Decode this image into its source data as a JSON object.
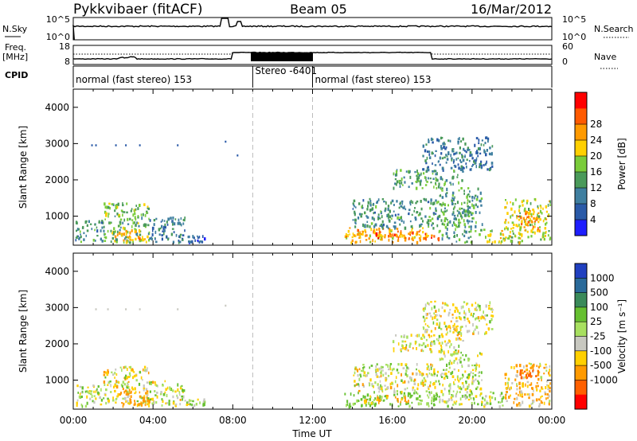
{
  "header": {
    "station": "Pykkvibaer (fitACF)",
    "beam": "Beam 05",
    "date": "16/Mar/2012"
  },
  "panel_labels": {
    "nsky": "N.Sky",
    "nsky_top": "10^5",
    "nsky_bottom": "10^0",
    "nsearch": "N.Search",
    "nsearch_top": "10^5",
    "nsearch_bottom": "10^0",
    "freq_line1": "Freq.",
    "freq_line2": "[MHz]",
    "freq_top": "18",
    "freq_bottom": "8",
    "nave": "Nave",
    "nave_top": "60",
    "nave_bottom": "0",
    "cpid": "CPID"
  },
  "cpid_segments": [
    {
      "start_h": 0,
      "end_h": 9,
      "label": "normal (fast stereo) 153"
    },
    {
      "start_h": 9,
      "end_h": 12,
      "label": "Stereo -6401"
    },
    {
      "start_h": 12,
      "end_h": 24,
      "label": "normal (fast stereo) 153"
    }
  ],
  "power_colorbar": {
    "title": "Power [dB]",
    "colors": [
      "#1e1eff",
      "#2a5aa8",
      "#3f7fa0",
      "#4a9a5a",
      "#7acc3a",
      "#ffd000",
      "#ff9a00",
      "#ff5a00",
      "#ff0000"
    ],
    "ticks": [
      "4",
      "8",
      "12",
      "16",
      "20",
      "24",
      "28"
    ]
  },
  "velocity_colorbar": {
    "title": "Velocity [m s⁻¹]",
    "colors": [
      "#2040c0",
      "#2a6a9a",
      "#3a8a5a",
      "#66c030",
      "#a8e060",
      "#c8c8c0",
      "#ffd000",
      "#ff9a00",
      "#ff6000",
      "#ff0000"
    ],
    "ticks": [
      "1000",
      "500",
      "100",
      "25",
      "-25",
      "-100",
      "-500",
      "-1000"
    ]
  },
  "chart_data": [
    {
      "type": "heatmap",
      "quantity": "Power",
      "ylabel": "Slant Range [km]",
      "ylim": [
        200,
        4500
      ],
      "xlim_hours": [
        0,
        24
      ],
      "yticks": [
        1000,
        2000,
        3000,
        4000
      ],
      "patches": [
        {
          "t0": 0.1,
          "t1": 1.5,
          "r0": 300,
          "r1": 900,
          "value": 12
        },
        {
          "t0": 1.5,
          "t1": 3.8,
          "r0": 300,
          "r1": 1400,
          "value": 16
        },
        {
          "t0": 2.0,
          "t1": 3.8,
          "r0": 350,
          "r1": 650,
          "value": 24
        },
        {
          "t0": 3.8,
          "t1": 5.6,
          "r0": 300,
          "r1": 1000,
          "value": 10
        },
        {
          "t0": 5.6,
          "t1": 6.6,
          "r0": 300,
          "r1": 500,
          "value": 6
        },
        {
          "t0": 13.5,
          "t1": 17.8,
          "r0": 300,
          "r1": 700,
          "value": 24
        },
        {
          "t0": 14.2,
          "t1": 16.5,
          "r0": 420,
          "r1": 620,
          "value": 28
        },
        {
          "t0": 16.5,
          "t1": 18.3,
          "r0": 350,
          "r1": 600,
          "value": 28
        },
        {
          "t0": 14.0,
          "t1": 18.3,
          "r0": 700,
          "r1": 1500,
          "value": 12
        },
        {
          "t0": 16.0,
          "t1": 19.5,
          "r0": 1800,
          "r1": 2300,
          "value": 14
        },
        {
          "t0": 17.5,
          "t1": 21.0,
          "r0": 2300,
          "r1": 3200,
          "value": 10
        },
        {
          "t0": 18.3,
          "t1": 20.5,
          "r0": 300,
          "r1": 1800,
          "value": 14
        },
        {
          "t0": 20.5,
          "t1": 21.6,
          "r0": 300,
          "r1": 700,
          "value": 20
        },
        {
          "t0": 21.6,
          "t1": 23.9,
          "r0": 300,
          "r1": 1500,
          "value": 20
        },
        {
          "t0": 22.2,
          "t1": 23.4,
          "r0": 700,
          "r1": 1200,
          "value": 26
        }
      ],
      "scatter_points": [
        {
          "t": 0.9,
          "r": 2980
        },
        {
          "t": 1.1,
          "r": 2980
        },
        {
          "t": 2.1,
          "r": 2980
        },
        {
          "t": 2.6,
          "r": 2980
        },
        {
          "t": 3.3,
          "r": 2980
        },
        {
          "t": 5.2,
          "r": 2980
        },
        {
          "t": 7.6,
          "r": 3080
        },
        {
          "t": 8.2,
          "r": 2700
        }
      ]
    },
    {
      "type": "heatmap",
      "quantity": "Velocity",
      "ylabel": "Slant Range [km]",
      "ylim": [
        200,
        4500
      ],
      "xlim_hours": [
        0,
        24
      ],
      "yticks": [
        1000,
        2000,
        3000,
        4000
      ],
      "xticks": [
        "00:00",
        "04:00",
        "08:00",
        "12:00",
        "16:00",
        "20:00",
        "00:00"
      ],
      "xlabel": "Time UT",
      "patches": [
        {
          "t0": 0.1,
          "t1": 1.5,
          "r0": 300,
          "r1": 900,
          "value": 50
        },
        {
          "t0": 1.5,
          "t1": 3.8,
          "r0": 300,
          "r1": 1400,
          "value": 0
        },
        {
          "t0": 2.4,
          "t1": 3.8,
          "r0": 350,
          "r1": 800,
          "value": -300
        },
        {
          "t0": 3.8,
          "t1": 5.6,
          "r0": 300,
          "r1": 1000,
          "value": 20
        },
        {
          "t0": 5.6,
          "t1": 6.6,
          "r0": 300,
          "r1": 500,
          "value": 60
        },
        {
          "t0": 13.5,
          "t1": 18.3,
          "r0": 300,
          "r1": 700,
          "value": 150
        },
        {
          "t0": 14.5,
          "t1": 16.8,
          "r0": 400,
          "r1": 600,
          "value": -150
        },
        {
          "t0": 14.0,
          "t1": 18.3,
          "r0": 700,
          "r1": 1500,
          "value": 0
        },
        {
          "t0": 16.0,
          "t1": 19.5,
          "r0": 1800,
          "r1": 2300,
          "value": 0
        },
        {
          "t0": 17.5,
          "t1": 21.0,
          "r0": 2300,
          "r1": 3200,
          "value": 0
        },
        {
          "t0": 18.3,
          "t1": 20.5,
          "r0": 300,
          "r1": 1800,
          "value": 40
        },
        {
          "t0": 20.5,
          "t1": 21.6,
          "r0": 300,
          "r1": 700,
          "value": 60
        },
        {
          "t0": 21.6,
          "t1": 23.9,
          "r0": 300,
          "r1": 1500,
          "value": -80
        },
        {
          "t0": 22.3,
          "t1": 23.4,
          "r0": 1000,
          "r1": 1300,
          "value": -600
        }
      ],
      "scatter_points": [
        {
          "t": 1.1,
          "r": 2980
        },
        {
          "t": 1.7,
          "r": 2980
        },
        {
          "t": 2.6,
          "r": 2980
        },
        {
          "t": 3.3,
          "r": 2980
        },
        {
          "t": 5.2,
          "r": 2980
        },
        {
          "t": 7.6,
          "r": 3080
        }
      ]
    }
  ]
}
